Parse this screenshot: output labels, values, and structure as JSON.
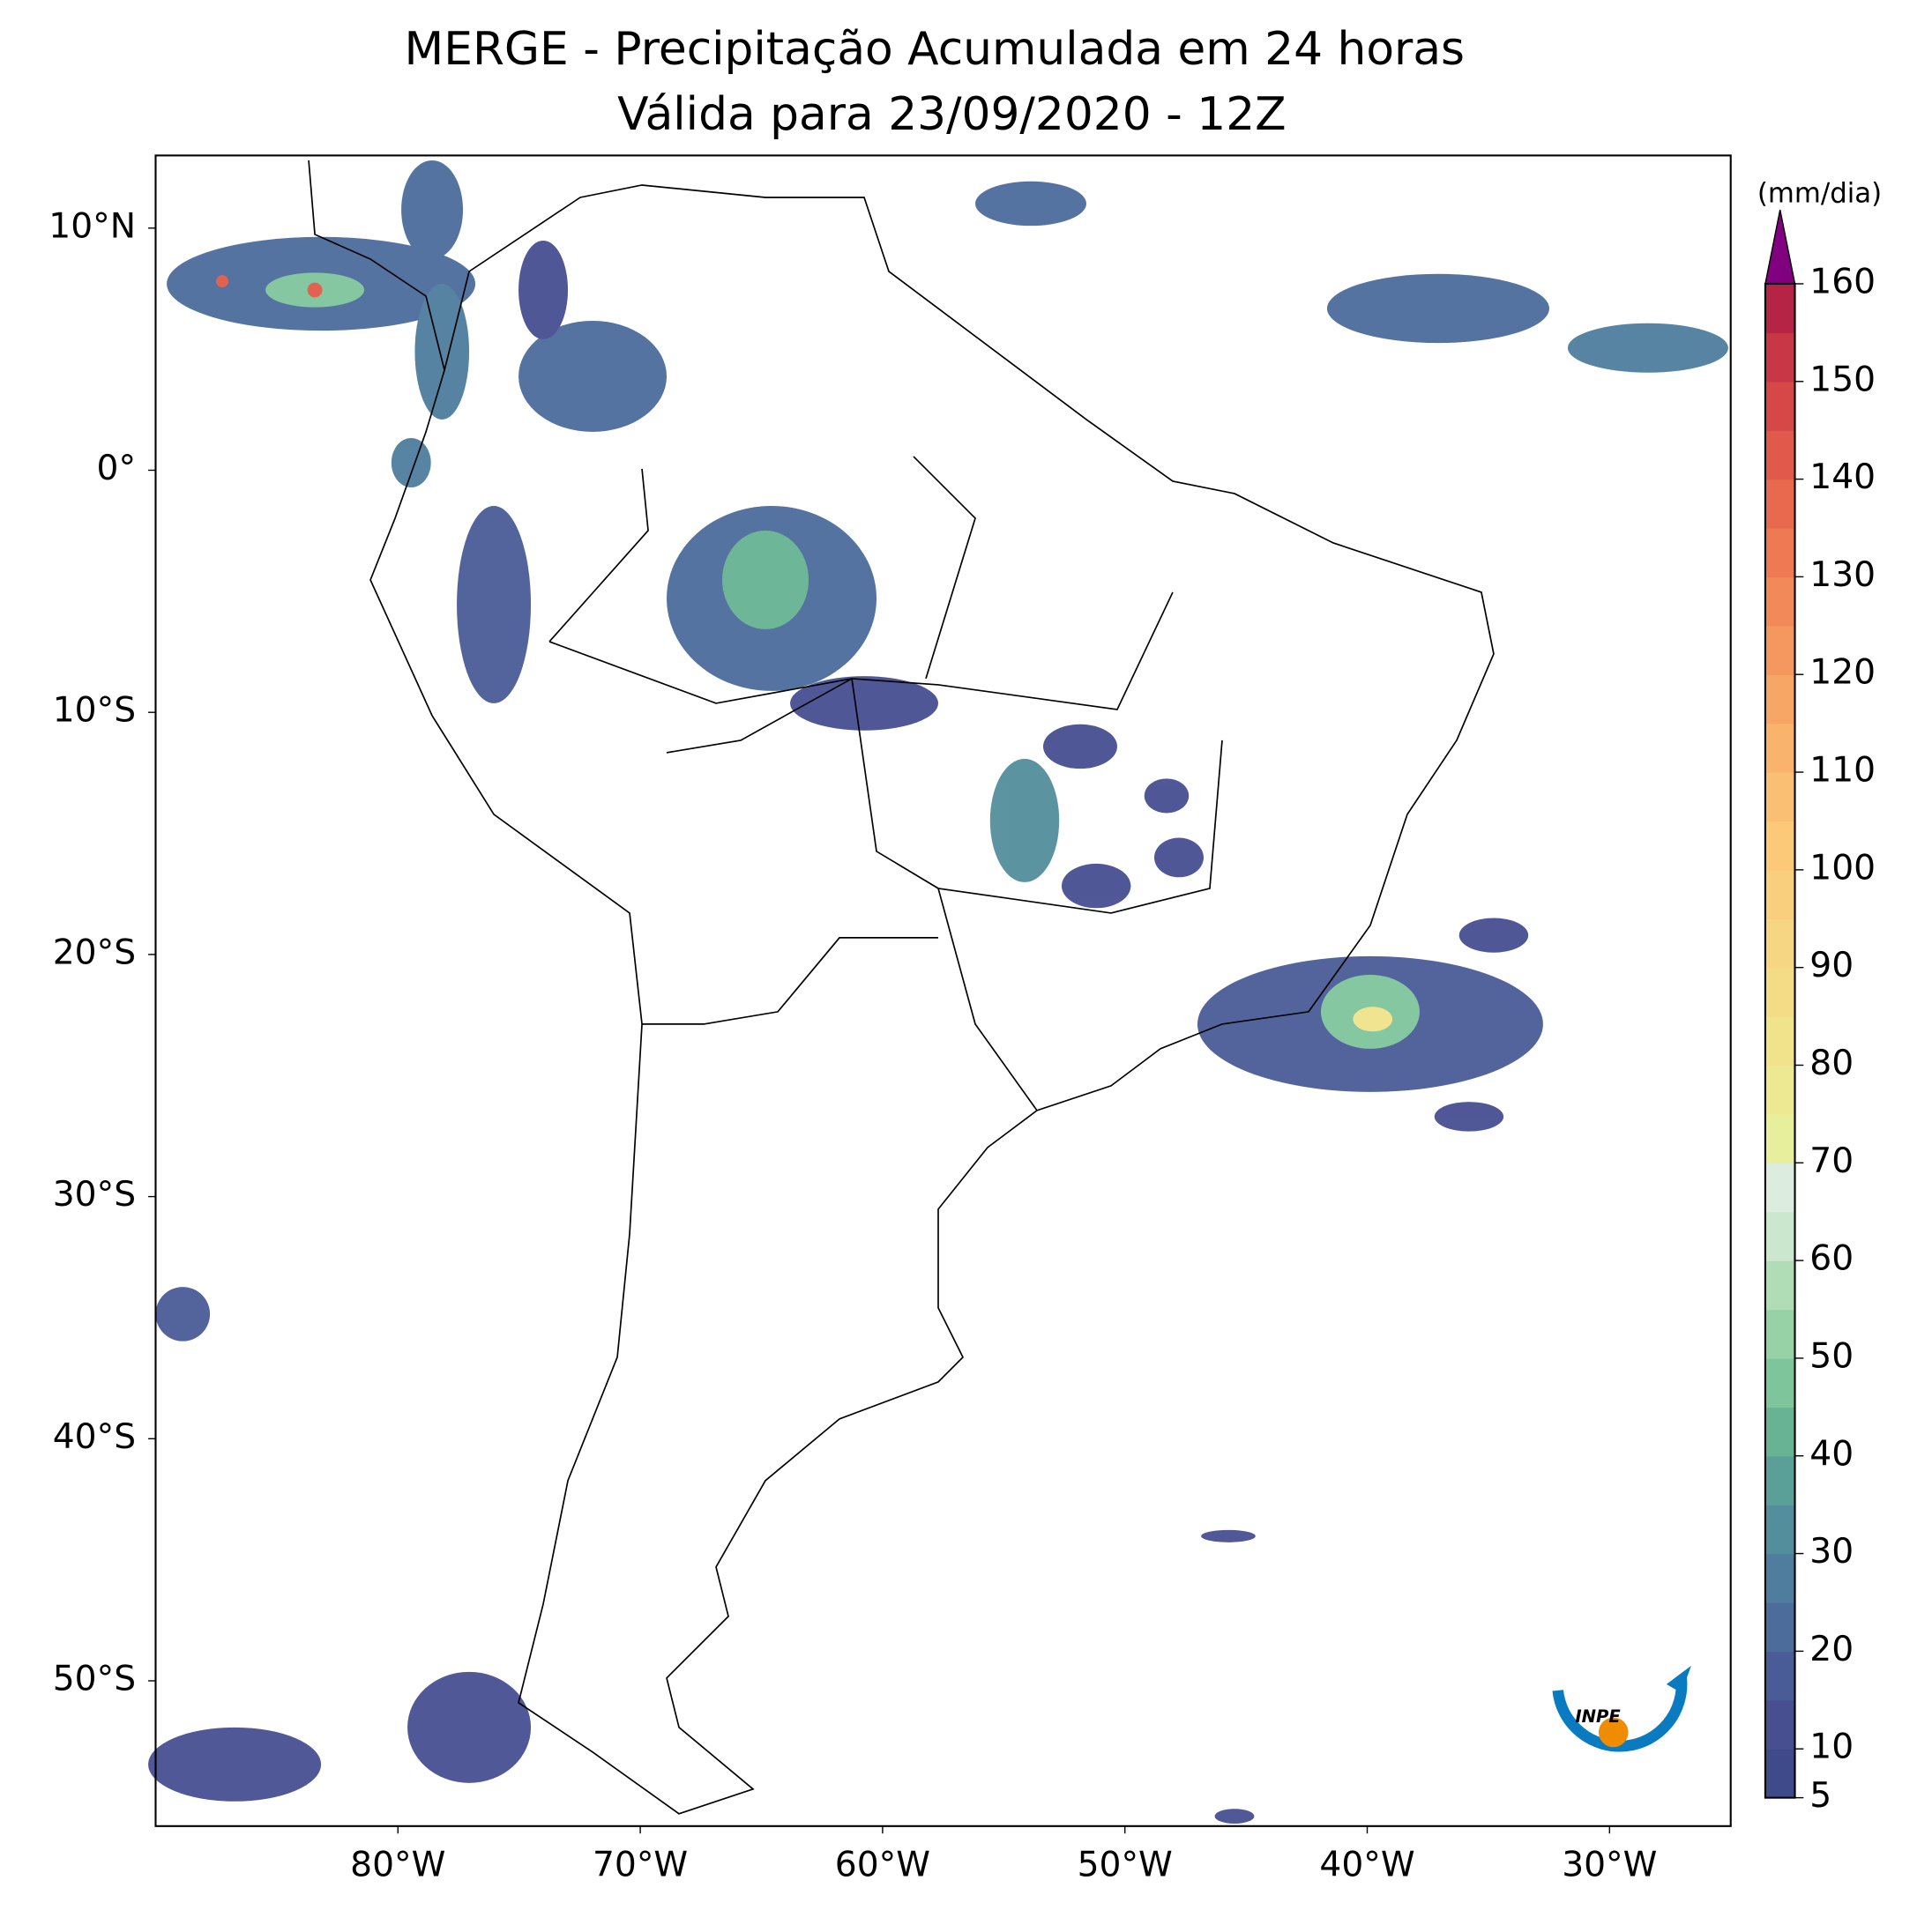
{
  "title": "MERGE - Precipitação Acumulada em 24 horas",
  "subtitle": "Válida para 23/09/2020 - 12Z",
  "map": {
    "xlim": [
      -90,
      -25
    ],
    "ylim": [
      -56,
      13
    ],
    "xticks": [
      {
        "value": -80,
        "label": "80°W"
      },
      {
        "value": -70,
        "label": "70°W"
      },
      {
        "value": -60,
        "label": "60°W"
      },
      {
        "value": -50,
        "label": "50°W"
      },
      {
        "value": -40,
        "label": "40°W"
      },
      {
        "value": -30,
        "label": "30°W"
      }
    ],
    "yticks": [
      {
        "value": 10,
        "label": "10°N"
      },
      {
        "value": 0,
        "label": "0°"
      },
      {
        "value": -10,
        "label": "10°S"
      },
      {
        "value": -20,
        "label": "20°S"
      },
      {
        "value": -30,
        "label": "30°S"
      },
      {
        "value": -40,
        "label": "40°S"
      },
      {
        "value": -50,
        "label": "50°S"
      }
    ]
  },
  "colorbar": {
    "label": "(mm/dia)",
    "ticks": [
      5,
      10,
      20,
      30,
      40,
      50,
      60,
      70,
      80,
      90,
      100,
      110,
      120,
      130,
      140,
      150,
      160
    ],
    "colors": [
      "#3f4a8a",
      "#474f91",
      "#4a5c98",
      "#4c6c9c",
      "#4f7d9e",
      "#538e9d",
      "#5aa098",
      "#67b393",
      "#7fc59c",
      "#97d1a6",
      "#b0ddb6",
      "#cbe7cd",
      "#dcecdf",
      "#e7ef9c",
      "#ede993",
      "#f1e38b",
      "#f4dc86",
      "#f6d682",
      "#f9cf7d",
      "#fbc978",
      "#fabf73",
      "#f9b36c",
      "#f8a666",
      "#f5985f",
      "#f28958",
      "#ee7953",
      "#e8694e",
      "#e0594a",
      "#d54847",
      "#c73745",
      "#b52444"
    ],
    "extend_color": "#800080"
  },
  "logo": "INPE"
}
